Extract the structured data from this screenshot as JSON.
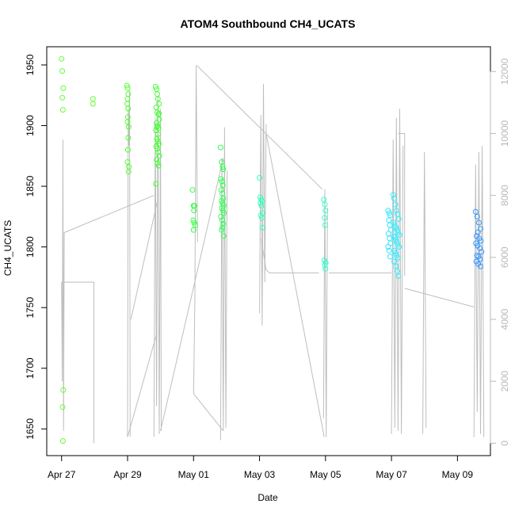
{
  "chart_data": {
    "type": "scatter",
    "title": "ATOM4 Southbound CH4_UCATS",
    "xlabel": "Date",
    "ylabel": "CH4_UCATS",
    "x_unit": "days since Apr 27",
    "x_ticks": [
      {
        "value": 0,
        "label": "Apr 27"
      },
      {
        "value": 2,
        "label": "Apr 29"
      },
      {
        "value": 4,
        "label": "May 01"
      },
      {
        "value": 6,
        "label": "May 03"
      },
      {
        "value": 8,
        "label": "May 05"
      },
      {
        "value": 10,
        "label": "May 07"
      },
      {
        "value": 12,
        "label": "May 09"
      }
    ],
    "xlim": [
      -0.45,
      13.0
    ],
    "ylim": [
      1628,
      1965
    ],
    "y_ticks": [
      1650,
      1700,
      1750,
      1800,
      1850,
      1900,
      1950
    ],
    "y2_ticks": [
      0,
      2000,
      4000,
      6000,
      8000,
      10000,
      12000
    ],
    "y2lim": [
      -400,
      12800
    ],
    "grid": false,
    "colors": {
      "altitude_line": "#bebebe",
      "points_early": "#66ff33",
      "points_mid": "#33ff88",
      "points_late": "#33ffee",
      "points_end": "#3399ff"
    },
    "series": [
      {
        "kind": "points",
        "color": "#66ff33",
        "x": [
          0.0,
          0.02,
          0.05,
          0.02,
          0.04,
          0.05,
          0.03,
          0.04,
          0.95,
          0.95
        ],
        "y": [
          1955,
          1945,
          1931,
          1923,
          1913,
          1682,
          1668,
          1640,
          1922,
          1918
        ]
      },
      {
        "kind": "points",
        "color": "#55ff33",
        "x": [
          1.98,
          2.0,
          2.02,
          2.0,
          1.99,
          2.02,
          2.01,
          2.0,
          2.03,
          2.02,
          2.01,
          2.04,
          2.03,
          2.0
        ],
        "y": [
          1933,
          1931,
          1926,
          1922,
          1918,
          1914,
          1907,
          1903,
          1899,
          1890,
          1880,
          1866,
          1862,
          1870
        ]
      },
      {
        "kind": "points",
        "color": "#44ff33",
        "x": [
          2.85,
          2.88,
          2.9,
          2.92,
          2.95,
          2.87,
          2.9,
          2.93,
          2.96,
          2.88,
          2.91,
          2.94,
          2.86,
          2.89,
          2.92,
          2.95,
          2.87,
          2.9,
          2.93,
          2.96,
          2.88,
          2.91,
          2.94,
          2.86,
          2.89,
          2.92,
          2.95
        ],
        "y": [
          1932,
          1930,
          1926,
          1922,
          1918,
          1915,
          1911,
          1909,
          1905,
          1902,
          1900,
          1898,
          1896,
          1889,
          1887,
          1885,
          1883,
          1881,
          1878,
          1875,
          1872,
          1869,
          1867,
          1852,
          1899,
          1893,
          1910
        ]
      },
      {
        "kind": "points",
        "color": "#33ff44",
        "x": [
          3.97,
          4.0,
          4.03,
          4.01,
          3.99,
          4.02,
          4.05,
          4.0
        ],
        "y": [
          1847,
          1834,
          1834,
          1830,
          1822,
          1820,
          1818,
          1814
        ]
      },
      {
        "kind": "points",
        "color": "#33ff55",
        "x": [
          4.82,
          4.85,
          4.88,
          4.9,
          4.83,
          4.86,
          4.89,
          4.84,
          4.87,
          4.9,
          4.85,
          4.88,
          4.91,
          4.86,
          4.89,
          4.92,
          4.83,
          4.87,
          4.9,
          4.88,
          4.85,
          4.91
        ],
        "y": [
          1882,
          1870,
          1866,
          1864,
          1856,
          1854,
          1851,
          1847,
          1844,
          1840,
          1838,
          1836,
          1834,
          1832,
          1830,
          1828,
          1825,
          1822,
          1819,
          1816,
          1814,
          1809
        ]
      },
      {
        "kind": "points",
        "color": "#33ffbb",
        "x": [
          6.0,
          6.02,
          6.05,
          6.08,
          6.03,
          6.06,
          6.1,
          6.04,
          6.07,
          6.09
        ],
        "y": [
          1857,
          1841,
          1839,
          1838,
          1836,
          1834,
          1828,
          1826,
          1824,
          1816
        ]
      },
      {
        "kind": "points",
        "color": "#33ffcc",
        "x": [
          7.95,
          7.98,
          8.0,
          7.97,
          7.99,
          7.96,
          8.01,
          7.98,
          8.0
        ],
        "y": [
          1839,
          1835,
          1830,
          1824,
          1818,
          1789,
          1787,
          1785,
          1782
        ]
      },
      {
        "kind": "points",
        "color": "#33eeff",
        "x": [
          10.05,
          10.08,
          10.12,
          10.15,
          10.18,
          10.22,
          10.06,
          10.1,
          10.14,
          10.17,
          10.2,
          10.24,
          10.07,
          10.11,
          10.13,
          10.16,
          10.19,
          10.23,
          10.09,
          10.12,
          10.15,
          10.2,
          10.08,
          10.14,
          10.18,
          10.21
        ],
        "y": [
          1843,
          1840,
          1835,
          1830,
          1827,
          1823,
          1820,
          1818,
          1816,
          1814,
          1812,
          1810,
          1809,
          1808,
          1806,
          1804,
          1802,
          1800,
          1797,
          1795,
          1793,
          1791,
          1788,
          1784,
          1780,
          1776
        ]
      },
      {
        "kind": "points",
        "color": "#33e6ff",
        "x": [
          9.9,
          9.93,
          9.96,
          9.92,
          9.95,
          9.98,
          9.91,
          9.94,
          9.97,
          9.9,
          9.93,
          9.96
        ],
        "y": [
          1830,
          1828,
          1826,
          1822,
          1818,
          1814,
          1811,
          1807,
          1803,
          1800,
          1797,
          1792
        ]
      },
      {
        "kind": "points",
        "color": "#3399ff",
        "x": [
          12.55,
          12.6,
          12.65,
          12.7,
          12.62,
          12.58,
          12.66,
          12.71,
          12.56,
          12.61,
          12.68,
          12.73,
          12.59,
          12.64,
          12.69,
          12.57,
          12.63,
          12.7
        ],
        "y": [
          1829,
          1825,
          1820,
          1815,
          1812,
          1809,
          1807,
          1805,
          1803,
          1801,
          1799,
          1796,
          1793,
          1792,
          1790,
          1788,
          1786,
          1784
        ]
      }
    ],
    "altitude": {
      "axis": "right",
      "color": "#bebebe",
      "segments": [
        {
          "x": [
            0.0,
            0.02,
            0.04,
            0.06,
            0.08
          ],
          "y": [
            5200,
            2000,
            9800,
            400,
            6800
          ]
        },
        {
          "x": [
            0.0,
            0.02,
            0.98,
            0.98
          ],
          "y": [
            5200,
            5200,
            5200,
            0
          ]
        },
        {
          "x": [
            0.08,
            2.8
          ],
          "y": [
            6800,
            8000
          ]
        },
        {
          "x": [
            2.0,
            2.02,
            2.04,
            2.06,
            2.08
          ],
          "y": [
            200,
            10800,
            9600,
            11400,
            200
          ]
        },
        {
          "x": [
            2.0,
            2.9
          ],
          "y": [
            200,
            3600
          ]
        },
        {
          "x": [
            2.1,
            2.9
          ],
          "y": [
            4000,
            7800
          ]
        },
        {
          "x": [
            2.8,
            2.84,
            2.88,
            2.92,
            2.96,
            3.0,
            3.02
          ],
          "y": [
            200,
            10500,
            1200,
            11200,
            300,
            10800,
            400
          ]
        },
        {
          "x": [
            3.0,
            4.9
          ],
          "y": [
            400,
            9200
          ]
        },
        {
          "x": [
            4.0,
            4.04,
            4.08,
            4.12
          ],
          "y": [
            1600,
            4500,
            12200,
            6500
          ]
        },
        {
          "x": [
            4.0,
            4.9
          ],
          "y": [
            1600,
            400
          ]
        },
        {
          "x": [
            4.1,
            7.9
          ],
          "y": [
            12200,
            8200
          ]
        },
        {
          "x": [
            4.82,
            4.86,
            4.9,
            4.94,
            4.98,
            5.02
          ],
          "y": [
            100,
            9200,
            400,
            10200,
            500,
            8800
          ]
        },
        {
          "x": [
            6.0,
            6.04,
            6.08,
            6.12,
            6.16,
            6.2
          ],
          "y": [
            4200,
            10600,
            3800,
            11600,
            5200,
            10300
          ]
        },
        {
          "x": [
            6.05,
            6.2,
            6.3,
            7.8
          ],
          "y": [
            6600,
            5600,
            5500,
            5500
          ]
        },
        {
          "x": [
            6.2,
            7.96
          ],
          "y": [
            10000,
            200
          ]
        },
        {
          "x": [
            7.94,
            7.98,
            8.02,
            8.06
          ],
          "y": [
            800,
            8200,
            200,
            7600
          ]
        },
        {
          "x": [
            8.1,
            10.0
          ],
          "y": [
            5500,
            5500
          ]
        },
        {
          "x": [
            10.0,
            10.05,
            10.1,
            10.15,
            10.2,
            10.25,
            10.3,
            10.35
          ],
          "y": [
            300,
            9800,
            500,
            10500,
            400,
            10800,
            300,
            9600
          ]
        },
        {
          "x": [
            10.2,
            10.4,
            10.4
          ],
          "y": [
            10000,
            10000,
            5400
          ]
        },
        {
          "x": [
            10.4,
            12.5
          ],
          "y": [
            5000,
            4400
          ]
        },
        {
          "x": [
            10.95,
            11.0,
            11.05
          ],
          "y": [
            300,
            9400,
            500
          ]
        },
        {
          "x": [
            12.5,
            12.55,
            12.6,
            12.65,
            12.7,
            12.75,
            12.8
          ],
          "y": [
            200,
            9000,
            1000,
            9400,
            300,
            9600,
            200
          ]
        }
      ]
    }
  }
}
